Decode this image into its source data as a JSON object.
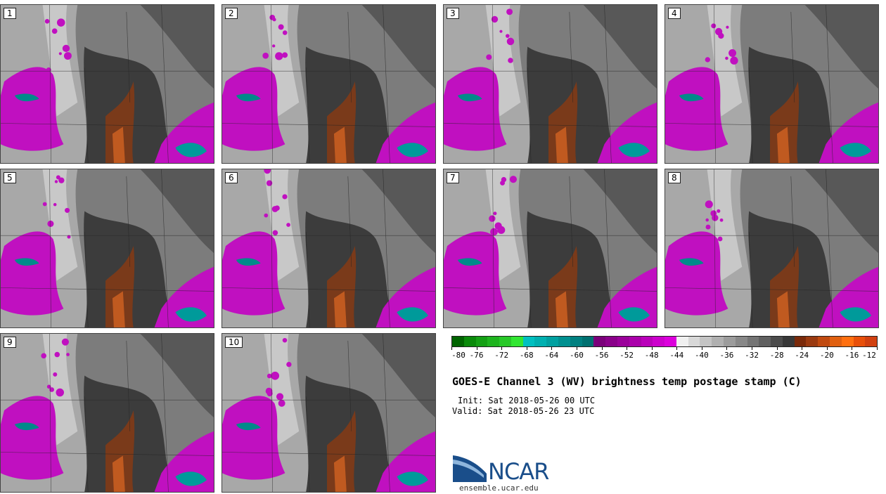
{
  "panels": [
    {
      "label": "1"
    },
    {
      "label": "2"
    },
    {
      "label": "3"
    },
    {
      "label": "4"
    },
    {
      "label": "5"
    },
    {
      "label": "6"
    },
    {
      "label": "7"
    },
    {
      "label": "8"
    },
    {
      "label": "9"
    },
    {
      "label": "10"
    }
  ],
  "colorbar": {
    "colors": [
      "#006400",
      "#0a8a0a",
      "#14a014",
      "#1eb41e",
      "#28c828",
      "#32e632",
      "#00c0c0",
      "#00b0b0",
      "#00a0a0",
      "#009090",
      "#008080",
      "#007070",
      "#7a007a",
      "#8a008a",
      "#9a009a",
      "#aa00aa",
      "#ba00ba",
      "#cc00cc",
      "#dc00dc",
      "#f0f0f0",
      "#d8d8d8",
      "#c4c4c4",
      "#b0b0b0",
      "#9c9c9c",
      "#888888",
      "#747474",
      "#606060",
      "#4c4c4c",
      "#383838",
      "#7a2a0a",
      "#9a3a10",
      "#c04a10",
      "#e06010",
      "#ff7010",
      "#e8500a",
      "#d04010"
    ],
    "tick_labels": [
      "-80",
      "-76",
      "-72",
      "-68",
      "-64",
      "-60",
      "-56",
      "-52",
      "-48",
      "-44",
      "-40",
      "-36",
      "-32",
      "-28",
      "-24",
      "-20",
      "-16",
      "-12"
    ]
  },
  "title": "GOES-E Channel 3 (WV) brightness temp postage stamp (C)",
  "init": "Init: Sat 2018-05-26 00 UTC",
  "valid": "Valid: Sat 2018-05-26 23 UTC",
  "logo": {
    "text": "NCAR",
    "url": "ensemble.ucar.edu",
    "color": "#1a4e8a"
  }
}
